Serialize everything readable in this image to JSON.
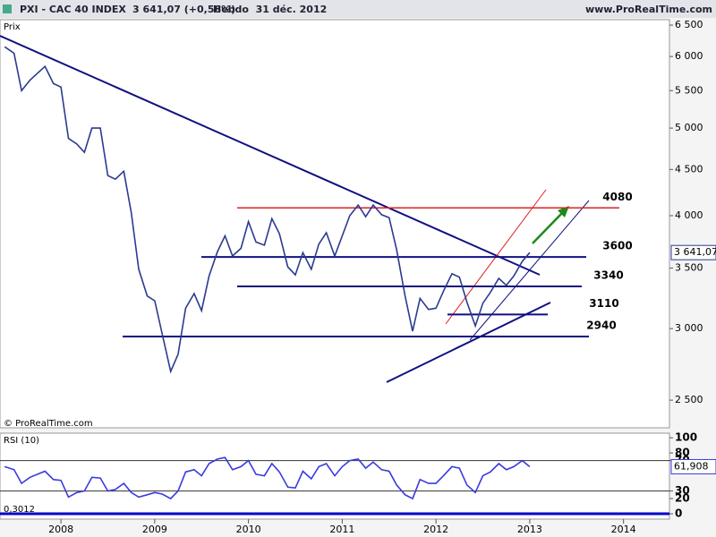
{
  "header": {
    "symbol": "PXI - CAC 40 INDEX",
    "quote": "3 641,07 (+0,58%)",
    "period": "Hebdo  31 déc. 2012",
    "site": "www.ProRealTime.com"
  },
  "chart_data": [
    {
      "type": "line",
      "axis_label": "Prix",
      "credit": "© ProRealTime.com",
      "log_scale": true,
      "x": [
        2007.4,
        2007.5,
        2007.58,
        2007.67,
        2007.75,
        2007.83,
        2007.92,
        2008.0,
        2008.08,
        2008.17,
        2008.25,
        2008.33,
        2008.42,
        2008.5,
        2008.58,
        2008.67,
        2008.75,
        2008.83,
        2008.92,
        2009.0,
        2009.08,
        2009.17,
        2009.25,
        2009.33,
        2009.42,
        2009.5,
        2009.58,
        2009.67,
        2009.75,
        2009.83,
        2009.92,
        2010.0,
        2010.08,
        2010.17,
        2010.25,
        2010.33,
        2010.42,
        2010.5,
        2010.58,
        2010.67,
        2010.75,
        2010.83,
        2010.92,
        2011.0,
        2011.08,
        2011.17,
        2011.25,
        2011.33,
        2011.42,
        2011.5,
        2011.58,
        2011.67,
        2011.75,
        2011.83,
        2011.92,
        2012.0,
        2012.08,
        2012.17,
        2012.25,
        2012.33,
        2012.42,
        2012.5,
        2012.58,
        2012.67,
        2012.75,
        2012.83,
        2012.92,
        2013.0
      ],
      "series": [
        {
          "name": "CAC 40",
          "color": "#2b3a8f",
          "values": [
            6150,
            6050,
            5500,
            5650,
            5750,
            5850,
            5600,
            5550,
            4870,
            4800,
            4700,
            5000,
            5000,
            4430,
            4390,
            4480,
            4030,
            3490,
            3260,
            3220,
            2960,
            2690,
            2810,
            3160,
            3280,
            3140,
            3430,
            3650,
            3800,
            3610,
            3680,
            3940,
            3740,
            3710,
            3970,
            3820,
            3510,
            3440,
            3640,
            3490,
            3720,
            3830,
            3610,
            3800,
            4000,
            4110,
            3990,
            4110,
            4010,
            3980,
            3670,
            3260,
            2980,
            3240,
            3150,
            3160,
            3300,
            3450,
            3420,
            3210,
            3020,
            3200,
            3290,
            3410,
            3350,
            3430,
            3560,
            3641.07
          ]
        }
      ],
      "last": {
        "value": 3641.07,
        "label": "3 641,07"
      },
      "levels": [
        {
          "value": 4080,
          "color": "#e02020"
        },
        {
          "value": 3600,
          "color": "#101080"
        },
        {
          "value": 3340,
          "color": "#101080"
        },
        {
          "value": 3110,
          "color": "#101080"
        },
        {
          "value": 2940,
          "color": "#101080"
        }
      ],
      "xlim": [
        2007.35,
        2014.49
      ],
      "xticks": [
        2008,
        2009,
        2010,
        2011,
        2012,
        2013,
        2014
      ],
      "ylim": [
        2330,
        6590
      ],
      "yticks": [
        {
          "value": 6500,
          "label": "6 500"
        },
        {
          "value": 6000,
          "label": "6 000"
        },
        {
          "value": 5500,
          "label": "5 500"
        },
        {
          "value": 5000,
          "label": "5 000"
        },
        {
          "value": 4500,
          "label": "4 500"
        },
        {
          "value": 4000,
          "label": "4 000"
        },
        {
          "value": 3500,
          "label": "3 500"
        },
        {
          "value": 3000,
          "label": "3 000"
        },
        {
          "value": 2500,
          "label": "2 500"
        }
      ]
    },
    {
      "type": "line",
      "title": "RSI (10)",
      "note": "0,3012",
      "x": [
        2007.4,
        2007.5,
        2007.58,
        2007.67,
        2007.75,
        2007.83,
        2007.92,
        2008.0,
        2008.08,
        2008.17,
        2008.25,
        2008.33,
        2008.42,
        2008.5,
        2008.58,
        2008.67,
        2008.75,
        2008.83,
        2008.92,
        2009.0,
        2009.08,
        2009.17,
        2009.25,
        2009.33,
        2009.42,
        2009.5,
        2009.58,
        2009.67,
        2009.75,
        2009.83,
        2009.92,
        2010.0,
        2010.08,
        2010.17,
        2010.25,
        2010.33,
        2010.42,
        2010.5,
        2010.58,
        2010.67,
        2010.75,
        2010.83,
        2010.92,
        2011.0,
        2011.08,
        2011.17,
        2011.25,
        2011.33,
        2011.42,
        2011.5,
        2011.58,
        2011.67,
        2011.75,
        2011.83,
        2011.92,
        2012.0,
        2012.08,
        2012.17,
        2012.25,
        2012.33,
        2012.42,
        2012.5,
        2012.58,
        2012.67,
        2012.75,
        2012.83,
        2012.92,
        2013.0
      ],
      "series": [
        {
          "name": "RSI",
          "color": "#3a3adf",
          "values": [
            62,
            58,
            40,
            48,
            52,
            56,
            45,
            44,
            22,
            28,
            30,
            48,
            47,
            30,
            32,
            40,
            28,
            22,
            25,
            28,
            26,
            20,
            30,
            55,
            58,
            50,
            66,
            72,
            74,
            58,
            62,
            70,
            52,
            50,
            66,
            55,
            35,
            34,
            56,
            46,
            62,
            66,
            50,
            62,
            70,
            72,
            60,
            68,
            58,
            56,
            38,
            25,
            20,
            45,
            40,
            40,
            50,
            62,
            60,
            38,
            28,
            50,
            55,
            66,
            58,
            62,
            70,
            61.908
          ]
        }
      ],
      "last": {
        "value": 61.908,
        "label": "61,908"
      },
      "levels": [
        {
          "value": 70,
          "color": "#333333"
        },
        {
          "value": 30,
          "color": "#333333"
        },
        {
          "value": 0,
          "color": "#0000cc"
        }
      ],
      "xlim": [
        2007.35,
        2014.49
      ],
      "ylim": [
        -7,
        106
      ],
      "yticks": [
        100,
        80,
        70,
        30,
        20,
        0
      ]
    }
  ]
}
